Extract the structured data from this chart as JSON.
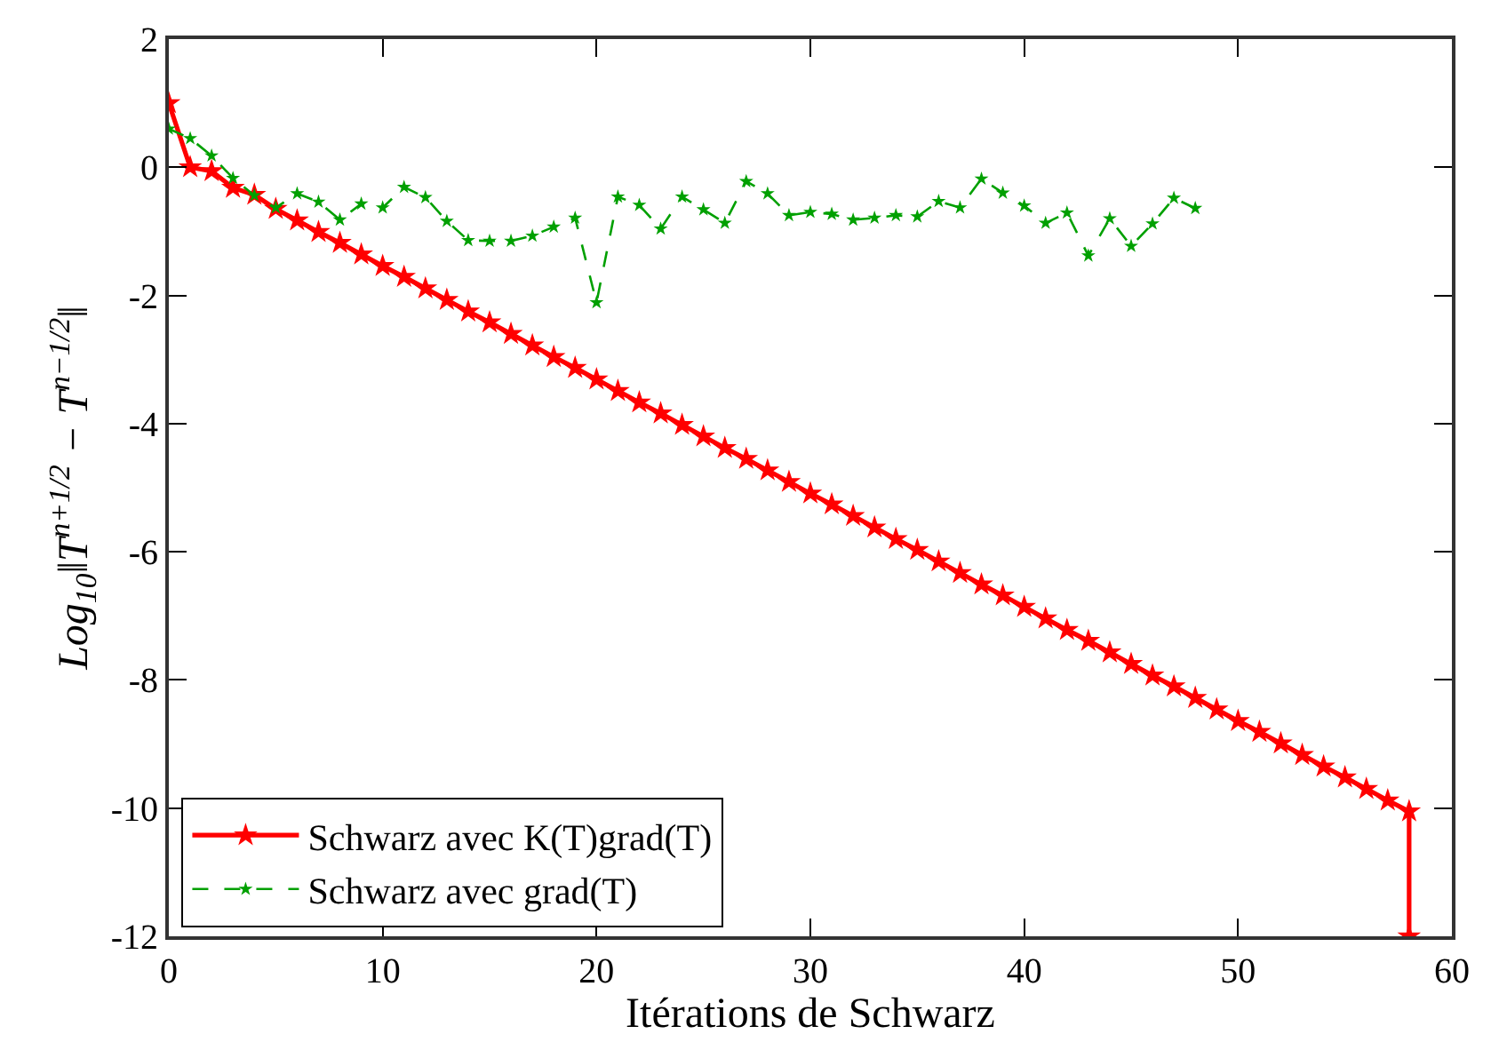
{
  "chart_data": {
    "type": "line",
    "xlabel": "Itérations de Schwarz",
    "ylabel": "Log$_{10}$‖T$^{n+1/2}$ − T$^{n−1/2}$‖",
    "xlim": [
      0,
      60
    ],
    "xticks": [
      0,
      10,
      20,
      30,
      40,
      50,
      60
    ],
    "ylim": [
      -12,
      2
    ],
    "yticks": [
      -12,
      -10,
      -8,
      -6,
      -4,
      -2,
      0,
      2
    ],
    "grid": false,
    "legend": "bottom left",
    "marker": "star",
    "series": [
      {
        "name": "Schwarz avec K(T)grad(T)",
        "color": "#ff0000",
        "line_style": "solid",
        "x": [
          0,
          1,
          2,
          3,
          4,
          5,
          6,
          7,
          8,
          9,
          10,
          11,
          12,
          13,
          14,
          15,
          16,
          17,
          18,
          19,
          20,
          21,
          22,
          23,
          24,
          25,
          26,
          27,
          28,
          29,
          30,
          31,
          32,
          33,
          34,
          35,
          36,
          37,
          38,
          39,
          40,
          41,
          42,
          43,
          44,
          45,
          46,
          47,
          48,
          49,
          50,
          51,
          52,
          53,
          54,
          55,
          56,
          57,
          58,
          58
        ],
        "values": [
          1.0,
          0.0,
          -0.06,
          -0.32,
          -0.43,
          -0.65,
          -0.83,
          -1.01,
          -1.18,
          -1.36,
          -1.54,
          -1.71,
          -1.89,
          -2.07,
          -2.25,
          -2.42,
          -2.6,
          -2.78,
          -2.96,
          -3.13,
          -3.31,
          -3.49,
          -3.67,
          -3.84,
          -4.02,
          -4.2,
          -4.38,
          -4.55,
          -4.73,
          -4.91,
          -5.09,
          -5.26,
          -5.44,
          -5.62,
          -5.8,
          -5.97,
          -6.15,
          -6.33,
          -6.51,
          -6.68,
          -6.86,
          -7.04,
          -7.22,
          -7.39,
          -7.57,
          -7.75,
          -7.93,
          -8.1,
          -8.28,
          -8.46,
          -8.64,
          -8.81,
          -8.99,
          -9.17,
          -9.35,
          -9.52,
          -9.7,
          -9.88,
          -10.05,
          -12
        ]
      },
      {
        "name": "Schwarz avec grad(T)",
        "color": "#00a000",
        "line_style": "dashed",
        "x": [
          0,
          1,
          2,
          3,
          4,
          5,
          6,
          7,
          8,
          9,
          10,
          11,
          12,
          13,
          14,
          15,
          16,
          17,
          18,
          19,
          20,
          21,
          22,
          23,
          24,
          25,
          26,
          27,
          28,
          29,
          30,
          31,
          32,
          33,
          34,
          35,
          36,
          37,
          38,
          39,
          40,
          41,
          42,
          43,
          44,
          45,
          46,
          47,
          48
        ],
        "values": [
          0.6,
          0.45,
          0.18,
          -0.17,
          -0.44,
          -0.63,
          -0.41,
          -0.54,
          -0.82,
          -0.57,
          -0.63,
          -0.31,
          -0.47,
          -0.84,
          -1.14,
          -1.15,
          -1.15,
          -1.07,
          -0.93,
          -0.79,
          -2.11,
          -0.46,
          -0.59,
          -0.96,
          -0.46,
          -0.66,
          -0.87,
          -0.22,
          -0.41,
          -0.75,
          -0.7,
          -0.73,
          -0.82,
          -0.79,
          -0.75,
          -0.77,
          -0.53,
          -0.63,
          -0.18,
          -0.4,
          -0.6,
          -0.87,
          -0.71,
          -1.38,
          -0.8,
          -1.23,
          -0.88,
          -0.48,
          -0.64
        ]
      }
    ]
  }
}
